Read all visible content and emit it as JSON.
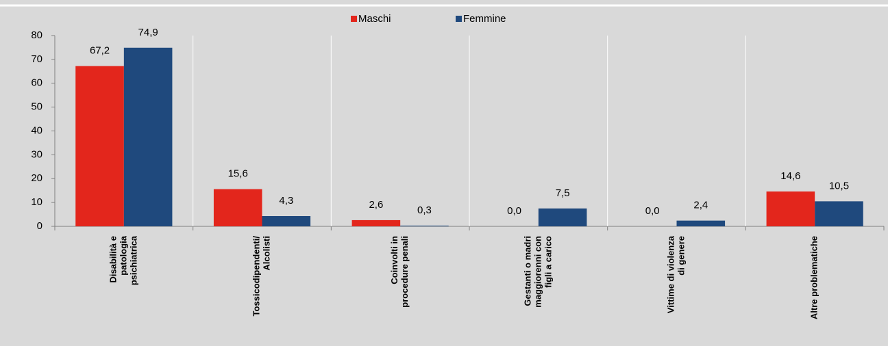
{
  "chart_data": {
    "type": "bar",
    "categories": [
      [
        "Disabilità e",
        "patologia",
        "psichiatrica"
      ],
      [
        "Tossicodipendenti/",
        "Alcolisti"
      ],
      [
        "Coinvolti in",
        "procedure penali"
      ],
      [
        "Gestanti o madri",
        "maggiorenni con",
        "figli a carico"
      ],
      [
        "Vittime di violenza",
        "di genere"
      ],
      [
        "Altre problematiche"
      ]
    ],
    "series": [
      {
        "name": "Maschi",
        "color": "#e3261c",
        "values": [
          67.2,
          15.6,
          2.6,
          0.0,
          0.0,
          14.6
        ],
        "value_labels": [
          "67,2",
          "15,6",
          "2,6",
          "0,0",
          "0,0",
          "14,6"
        ]
      },
      {
        "name": "Femmine",
        "color": "#1f497d",
        "values": [
          74.9,
          4.3,
          0.3,
          7.5,
          2.4,
          10.5
        ],
        "value_labels": [
          "74,9",
          "4,3",
          "0,3",
          "7,5",
          "2,4",
          "10,5"
        ]
      }
    ],
    "ylim": [
      0,
      80
    ],
    "yticks": [
      0,
      10,
      20,
      30,
      40,
      50,
      60,
      70,
      80
    ],
    "grid": false,
    "legend": "top"
  }
}
